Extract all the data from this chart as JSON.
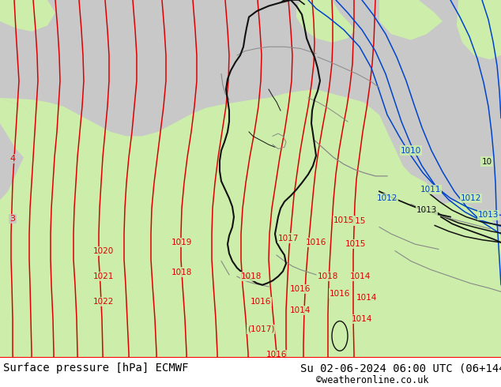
{
  "title_left": "Surface pressure [hPa] ECMWF",
  "title_right": "Su 02-06-2024 06:00 UTC (06+144)",
  "watermark": "©weatheronline.co.uk",
  "bg_color": "#c8c8c8",
  "land_color": "#cceeaa",
  "figsize": [
    6.34,
    4.9
  ],
  "dpi": 100,
  "red_color": "#dd0000",
  "blue_color": "#0044cc",
  "black_color": "#111111",
  "gray_border": "#888888",
  "title_fontsize": 10
}
